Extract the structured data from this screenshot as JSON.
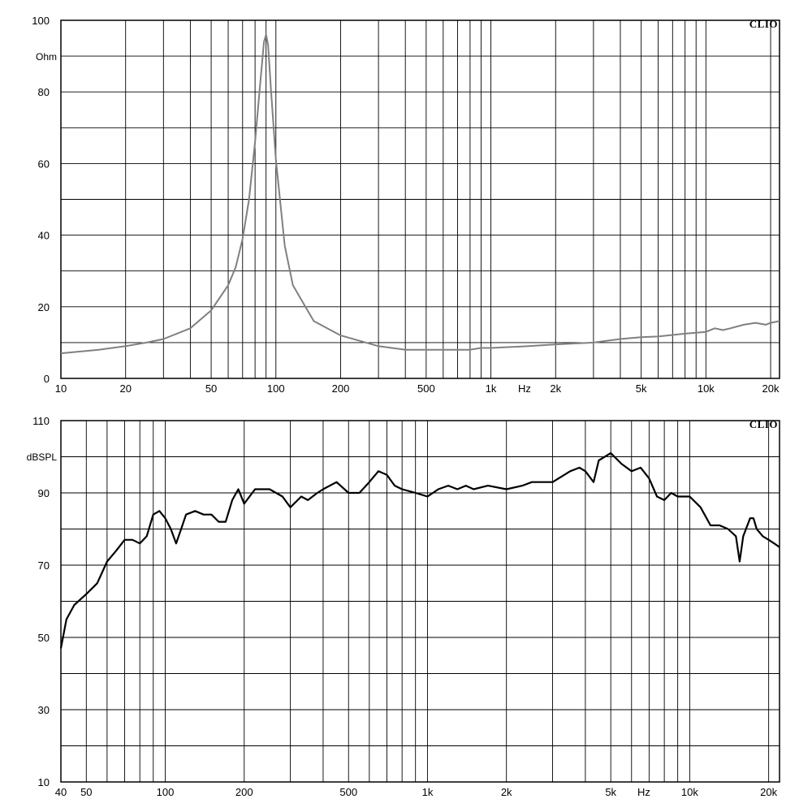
{
  "chart_data": [
    {
      "type": "line",
      "brand": "CLIO",
      "ylabel": "Ohm",
      "xlabel": "Hz",
      "x_scale": "log",
      "xlim": [
        10,
        22000
      ],
      "ylim": [
        0,
        100
      ],
      "grid": true,
      "line_color": "#808080",
      "y_ticks": [
        {
          "value": 0,
          "label": "0"
        },
        {
          "value": 20,
          "label": "20"
        },
        {
          "value": 40,
          "label": "40"
        },
        {
          "value": 60,
          "label": "60"
        },
        {
          "value": 80,
          "label": "80"
        },
        {
          "value": 100,
          "label": "100"
        }
      ],
      "x_ticks": [
        {
          "value": 10,
          "label": "10"
        },
        {
          "value": 20,
          "label": "20"
        },
        {
          "value": 50,
          "label": "50"
        },
        {
          "value": 100,
          "label": "100"
        },
        {
          "value": 200,
          "label": "200"
        },
        {
          "value": 500,
          "label": "500"
        },
        {
          "value": 1000,
          "label": "1k"
        },
        {
          "value": 2000,
          "label": "2k"
        },
        {
          "value": 5000,
          "label": "5k"
        },
        {
          "value": 10000,
          "label": "10k"
        },
        {
          "value": 20000,
          "label": "20k"
        }
      ],
      "series": [
        {
          "x": [
            10,
            15,
            20,
            25,
            30,
            40,
            50,
            60,
            65,
            70,
            75,
            80,
            85,
            88,
            90,
            92,
            95,
            100,
            110,
            120,
            150,
            200,
            300,
            400,
            500,
            600,
            700,
            800,
            900,
            1000,
            1500,
            2000,
            3000,
            4000,
            5000,
            6000,
            8000,
            10000,
            11000,
            12000,
            13000,
            15000,
            17000,
            19000,
            20000,
            22000
          ],
          "y": [
            7,
            8,
            9,
            10,
            11,
            14,
            19,
            26,
            31,
            39,
            50,
            66,
            84,
            94,
            96,
            93,
            80,
            61,
            37,
            26,
            16,
            12,
            9,
            8,
            8,
            8,
            8,
            8,
            8.5,
            8.5,
            9,
            9.5,
            10,
            11,
            11.5,
            11.7,
            12.5,
            13,
            14,
            13.5,
            14,
            15,
            15.5,
            15,
            15.5,
            16
          ]
        }
      ]
    },
    {
      "type": "line",
      "brand": "CLIO",
      "ylabel": "dBSPL",
      "xlabel": "Hz",
      "x_scale": "log",
      "xlim": [
        40,
        22000
      ],
      "ylim": [
        10,
        110
      ],
      "grid": true,
      "line_color": "#000000",
      "y_ticks": [
        {
          "value": 10,
          "label": "10"
        },
        {
          "value": 30,
          "label": "30"
        },
        {
          "value": 50,
          "label": "50"
        },
        {
          "value": 70,
          "label": "70"
        },
        {
          "value": 90,
          "label": "90"
        },
        {
          "value": 110,
          "label": "110"
        }
      ],
      "x_ticks": [
        {
          "value": 40,
          "label": "40"
        },
        {
          "value": 50,
          "label": "50"
        },
        {
          "value": 100,
          "label": "100"
        },
        {
          "value": 200,
          "label": "200"
        },
        {
          "value": 500,
          "label": "500"
        },
        {
          "value": 1000,
          "label": "1k"
        },
        {
          "value": 2000,
          "label": "2k"
        },
        {
          "value": 5000,
          "label": "5k"
        },
        {
          "value": 10000,
          "label": "10k"
        },
        {
          "value": 20000,
          "label": "20k"
        }
      ],
      "series": [
        {
          "x": [
            40,
            42,
            45,
            50,
            55,
            60,
            65,
            70,
            75,
            80,
            85,
            90,
            95,
            100,
            105,
            110,
            115,
            120,
            130,
            140,
            150,
            160,
            170,
            180,
            190,
            200,
            220,
            250,
            280,
            300,
            330,
            350,
            380,
            400,
            450,
            500,
            550,
            600,
            650,
            700,
            750,
            800,
            900,
            1000,
            1100,
            1200,
            1300,
            1400,
            1500,
            1700,
            2000,
            2300,
            2500,
            2800,
            3000,
            3500,
            3800,
            4000,
            4300,
            4500,
            5000,
            5500,
            6000,
            6500,
            7000,
            7500,
            8000,
            8500,
            9000,
            10000,
            11000,
            12000,
            13000,
            14000,
            14500,
            15000,
            15500,
            16000,
            17000,
            17500,
            18000,
            19000,
            20000,
            21000,
            22000
          ],
          "y": [
            47,
            55,
            59,
            62,
            65,
            71,
            74,
            77,
            77,
            76,
            78,
            84,
            85,
            83,
            80,
            76,
            80,
            84,
            85,
            84,
            84,
            82,
            82,
            88,
            91,
            87,
            91,
            91,
            89,
            86,
            89,
            88,
            90,
            91,
            93,
            90,
            90,
            93,
            96,
            95,
            92,
            91,
            90,
            89,
            91,
            92,
            91,
            92,
            91,
            92,
            91,
            92,
            93,
            93,
            93,
            96,
            97,
            96,
            93,
            99,
            101,
            98,
            96,
            97,
            94,
            89,
            88,
            90,
            89,
            89,
            86,
            81,
            81,
            80,
            79,
            78,
            71,
            78,
            83,
            83,
            80,
            78,
            77,
            76,
            75
          ]
        }
      ]
    }
  ]
}
